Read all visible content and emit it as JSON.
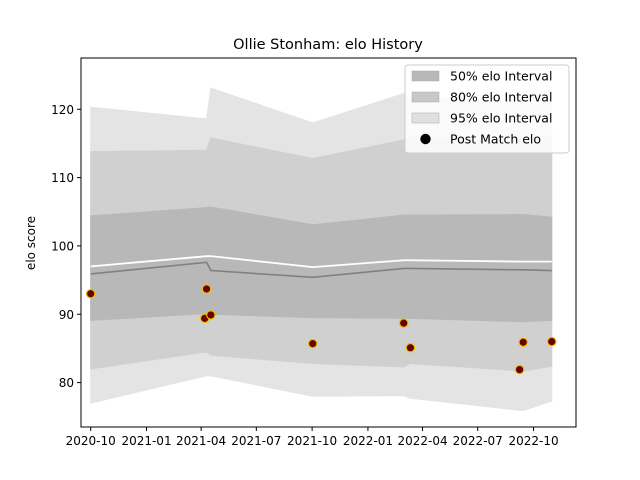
{
  "chart_data": {
    "type": "line",
    "title": "Ollie Stonham: elo History",
    "xlabel": "",
    "ylabel": "elo score",
    "x_axis_type": "date",
    "xlim": [
      "2020-09-15",
      "2022-12-10"
    ],
    "ylim": [
      73.5,
      127.5
    ],
    "x_ticks": [
      "2020-10",
      "2021-01",
      "2021-04",
      "2021-07",
      "2021-10",
      "2022-01",
      "2022-04",
      "2022-07",
      "2022-10"
    ],
    "x_tick_dates": [
      "2020-10-01",
      "2021-01-01",
      "2021-04-01",
      "2021-07-01",
      "2021-10-01",
      "2022-01-01",
      "2022-04-01",
      "2022-07-01",
      "2022-10-01"
    ],
    "y_ticks": [
      80,
      90,
      100,
      110,
      120
    ],
    "grid": false,
    "legend_position": "top-right",
    "band_dates": [
      "2020-10-01",
      "2021-04-10",
      "2021-04-17",
      "2021-10-02",
      "2022-03-01",
      "2022-03-12",
      "2022-09-14",
      "2022-10-31"
    ],
    "bands": [
      {
        "name": "95% elo Interval",
        "color": "#e4e4e4",
        "lower": [
          77.0,
          81.0,
          81.0,
          78.0,
          78.1,
          77.7,
          75.9,
          77.3
        ],
        "upper": [
          120.3,
          118.6,
          123.1,
          118.0,
          122.3,
          121.8,
          121.3,
          123.0
        ]
      },
      {
        "name": "80% elo Interval",
        "color": "#d0d0d0",
        "lower": [
          82.0,
          84.5,
          84.0,
          82.8,
          82.3,
          82.8,
          81.7,
          82.4
        ],
        "upper": [
          113.8,
          114.0,
          115.8,
          112.8,
          115.5,
          115.9,
          115.2,
          116.3
        ]
      },
      {
        "name": "50% elo Interval",
        "color": "#b8b8b8",
        "lower": [
          89.1,
          90.1,
          90.0,
          89.5,
          89.4,
          89.4,
          88.9,
          89.1
        ],
        "upper": [
          104.4,
          105.6,
          105.7,
          103.1,
          104.5,
          104.5,
          104.6,
          104.2
        ]
      }
    ],
    "mean_line": {
      "color": "#ffffff",
      "values": [
        97.0,
        98.5,
        98.5,
        96.9,
        97.9,
        97.9,
        97.7,
        97.7
      ]
    },
    "median_line": {
      "color": "#808080",
      "values": [
        95.9,
        97.6,
        96.4,
        95.4,
        96.7,
        96.7,
        96.5,
        96.4
      ]
    },
    "points": {
      "name": "Post Match elo",
      "dates": [
        "2020-10-01",
        "2021-04-07",
        "2021-04-10",
        "2021-04-17",
        "2021-10-02",
        "2022-03-01",
        "2022-03-12",
        "2022-09-08",
        "2022-09-14",
        "2022-10-31"
      ],
      "values": [
        93.0,
        89.4,
        93.7,
        89.9,
        85.7,
        88.7,
        85.1,
        81.9,
        85.9,
        86.0
      ]
    },
    "legend": [
      {
        "label": "50% elo Interval",
        "kind": "patch",
        "color": "#b8b8b8"
      },
      {
        "label": "80% elo Interval",
        "kind": "patch",
        "color": "#c8c8c8"
      },
      {
        "label": "95% elo Interval",
        "kind": "patch",
        "color": "#e0e0e0"
      },
      {
        "label": "Post Match elo",
        "kind": "marker",
        "color": "#000000"
      }
    ]
  }
}
